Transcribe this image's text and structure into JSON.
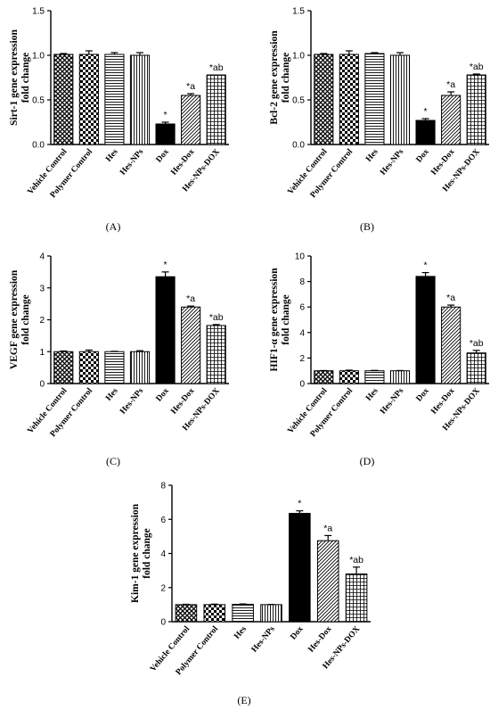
{
  "colors": {
    "axis": "#000000",
    "bar_fill": "#ffffff",
    "dox_fill": "#000000"
  },
  "chart_data": [
    {
      "type": "bar",
      "panel_label": "(A)",
      "ylabel": [
        "Sirt-1 gene expression",
        "fold change"
      ],
      "ylim": [
        0,
        1.5
      ],
      "yticks": [
        "0.0",
        "0.5",
        "1.0",
        "1.5"
      ],
      "categories": [
        "Vehicle Control",
        "Polymer Control",
        "Hes",
        "Hes-NPs",
        "Dox",
        "Hes-Dox",
        "Hes-NPs-DOX"
      ],
      "values": [
        1.01,
        1.01,
        1.01,
        1.0,
        0.23,
        0.55,
        0.78
      ],
      "errors": [
        0.01,
        0.04,
        0.02,
        0.03,
        0.02,
        0.02,
        0.0
      ],
      "annotations": [
        "",
        "",
        "",
        "",
        "*",
        "*a",
        "*ab"
      ],
      "patterns": [
        "pat-cross",
        "pat-check",
        "pat-hstripe",
        "pat-vstripe",
        "solid",
        "pat-diag",
        "pat-grid"
      ]
    },
    {
      "type": "bar",
      "panel_label": "(B)",
      "ylabel": [
        "Bcl-2 gene expression",
        "fold change"
      ],
      "ylim": [
        0,
        1.5
      ],
      "yticks": [
        "0.0",
        "0.5",
        "1.0",
        "1.5"
      ],
      "categories": [
        "Vehicle Control",
        "Polymer Control",
        "Hes",
        "Hes-NPs",
        "Dox",
        "Hes-Dox",
        "Hes-NPs-DOX"
      ],
      "values": [
        1.01,
        1.01,
        1.02,
        1.0,
        0.27,
        0.55,
        0.78
      ],
      "errors": [
        0.01,
        0.04,
        0.01,
        0.03,
        0.02,
        0.04,
        0.01
      ],
      "annotations": [
        "",
        "",
        "",
        "",
        "*",
        "*a",
        "*ab"
      ],
      "patterns": [
        "pat-cross",
        "pat-check",
        "pat-hstripe",
        "pat-vstripe",
        "solid",
        "pat-diag",
        "pat-grid"
      ]
    },
    {
      "type": "bar",
      "panel_label": "(C)",
      "ylabel": [
        "VEGF gene expression",
        "fold change"
      ],
      "ylim": [
        0,
        4
      ],
      "yticks": [
        "0",
        "1",
        "2",
        "3",
        "4"
      ],
      "categories": [
        "Vehicle Control",
        "Polymer Control",
        "Hes",
        "Hes-NPs",
        "Dox",
        "Hes-Dox",
        "Hes-NPs-DOX"
      ],
      "values": [
        1.0,
        1.0,
        1.0,
        1.0,
        3.35,
        2.4,
        1.82
      ],
      "errors": [
        0.02,
        0.05,
        0.01,
        0.03,
        0.15,
        0.03,
        0.03
      ],
      "annotations": [
        "",
        "",
        "",
        "",
        "*",
        "*a",
        "*ab"
      ],
      "patterns": [
        "pat-cross",
        "pat-check",
        "pat-hstripe",
        "pat-vstripe",
        "solid",
        "pat-diag",
        "pat-grid"
      ]
    },
    {
      "type": "bar",
      "panel_label": "(D)",
      "ylabel": [
        "HIF1-α gene expression",
        "fold change"
      ],
      "ylim": [
        0,
        10
      ],
      "yticks": [
        "0",
        "2",
        "4",
        "6",
        "8",
        "10"
      ],
      "categories": [
        "Vehicle Control",
        "Polymer Control",
        "Hes",
        "Hes-NPs",
        "Dox",
        "Hes-Dox",
        "Hes-NPs-DOX"
      ],
      "values": [
        1.0,
        1.0,
        1.0,
        1.0,
        8.4,
        6.0,
        2.4
      ],
      "errors": [
        0.02,
        0.05,
        0.03,
        0.02,
        0.3,
        0.15,
        0.2
      ],
      "annotations": [
        "",
        "",
        "",
        "",
        "*",
        "*a",
        "*ab"
      ],
      "patterns": [
        "pat-cross",
        "pat-check",
        "pat-hstripe",
        "pat-vstripe",
        "solid",
        "pat-diag",
        "pat-grid"
      ]
    },
    {
      "type": "bar",
      "panel_label": "(E)",
      "ylabel": [
        "Kim-1 gene expression",
        "fold change"
      ],
      "ylim": [
        0,
        8
      ],
      "yticks": [
        "0",
        "2",
        "4",
        "6",
        "8"
      ],
      "categories": [
        "Vehicle Control",
        "Polymer Control",
        "Hes",
        "Hes-NPs",
        "Dox",
        "Hes-Dox",
        "Hes-NPs-DOX"
      ],
      "values": [
        1.0,
        1.0,
        1.02,
        1.0,
        6.35,
        4.75,
        2.8
      ],
      "errors": [
        0.02,
        0.03,
        0.02,
        0.01,
        0.15,
        0.3,
        0.4
      ],
      "annotations": [
        "",
        "",
        "",
        "",
        "*",
        "*a",
        "*ab"
      ],
      "patterns": [
        "pat-cross",
        "pat-check",
        "pat-hstripe",
        "pat-vstripe",
        "solid",
        "pat-diag",
        "pat-grid"
      ]
    }
  ]
}
